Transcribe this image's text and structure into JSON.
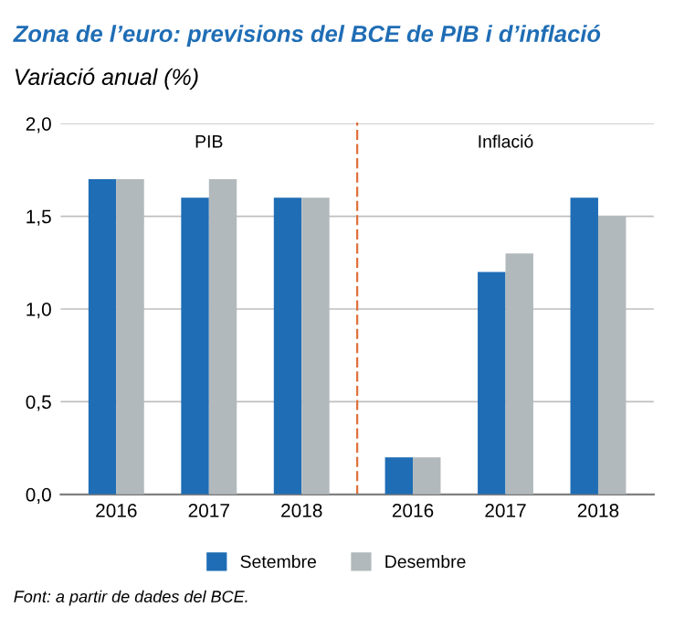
{
  "chart_data": [
    {
      "type": "bar",
      "title": "Zona de l’euro: previsions del BCE de PIB i d’inflació",
      "subtitle": "Variació anual (%)",
      "annotations": [
        "PIB"
      ],
      "categories": [
        "2016",
        "2017",
        "2018"
      ],
      "series": [
        {
          "name": "Setembre",
          "color": "#1f6db5",
          "values": [
            1.7,
            1.6,
            1.6
          ]
        },
        {
          "name": "Desembre",
          "color": "#b2b9bc",
          "values": [
            1.7,
            1.7,
            1.6
          ]
        }
      ],
      "ylim": [
        0,
        2
      ],
      "yticks": [
        {
          "value": 0,
          "label": "0,0"
        },
        {
          "value": 0.5,
          "label": "0,5"
        },
        {
          "value": 1,
          "label": "1,0"
        },
        {
          "value": 1.5,
          "label": "1,5"
        },
        {
          "value": 2,
          "label": "2,0"
        }
      ],
      "grid": "y",
      "legend": "bottom"
    },
    {
      "type": "bar",
      "annotations": [
        "Inflació",
        "Font: a partir de dades del BCE."
      ],
      "categories": [
        "2016",
        "2017",
        "2018"
      ],
      "series": [
        {
          "color": "#1f6db5",
          "values": [
            0.2,
            1.2,
            1.6
          ]
        },
        {
          "color": "#b2b9bc",
          "values": [
            0.2,
            1.3,
            1.5
          ]
        }
      ],
      "ylim": [
        0,
        2
      ],
      "yticks": [
        {
          "value": 0,
          "label": null
        },
        {
          "value": 0.5,
          "label": null
        },
        {
          "value": 1,
          "label": null
        },
        {
          "value": 1.5,
          "label": null
        },
        {
          "value": 2,
          "label": null
        }
      ],
      "grid": "y",
      "tick_labels": "x"
    }
  ]
}
